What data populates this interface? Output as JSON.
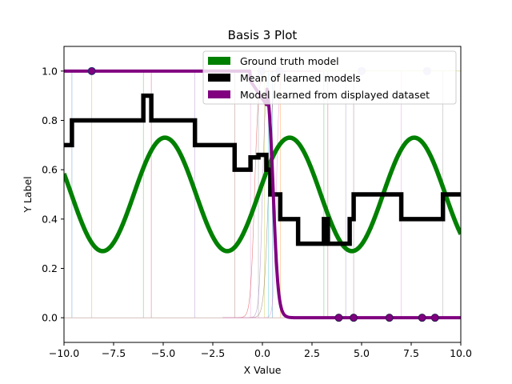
{
  "chart_data": {
    "type": "line",
    "title": "Basis 3 Plot",
    "xlabel": "X Value",
    "ylabel": "Y Label",
    "xlim": [
      -10,
      10
    ],
    "ylim": [
      -0.1,
      1.1
    ],
    "x_ticks": [
      -10,
      -7.5,
      -5,
      -2.5,
      0,
      2.5,
      5,
      7.5,
      10
    ],
    "x_tick_labels": [
      "−10.0",
      "−7.5",
      "−5.0",
      "−2.5",
      "0.0",
      "2.5",
      "5.0",
      "7.5",
      "10.0"
    ],
    "y_ticks": [
      0.0,
      0.2,
      0.4,
      0.6,
      0.8,
      1.0
    ],
    "y_tick_labels": [
      "0.0",
      "0.2",
      "0.4",
      "0.6",
      "0.8",
      "1.0"
    ],
    "grid": false,
    "legend_position": "upper right",
    "legend": [
      {
        "label": "Ground truth model",
        "color": "#008000"
      },
      {
        "label": "Mean of learned models",
        "color": "#000000"
      },
      {
        "label": "Model learned from displayed dataset",
        "color": "#800080"
      }
    ],
    "ground_truth": {
      "form": "0.5 + 0.23*sin(1.0*x + 0.2)",
      "color": "#008000"
    },
    "mean_model": {
      "color": "#000000",
      "steps": [
        [
          -10,
          0.7
        ],
        [
          -9.6,
          0.8
        ],
        [
          -6.0,
          0.9
        ],
        [
          -5.6,
          0.8
        ],
        [
          -3.4,
          0.7
        ],
        [
          -1.4,
          0.6
        ],
        [
          -0.6,
          0.65
        ],
        [
          -0.2,
          0.66
        ],
        [
          0.2,
          0.6
        ],
        [
          0.4,
          0.5
        ],
        [
          0.9,
          0.4
        ],
        [
          1.8,
          0.3
        ],
        [
          3.1,
          0.4
        ],
        [
          3.3,
          0.3
        ],
        [
          4.4,
          0.4
        ],
        [
          4.6,
          0.5
        ],
        [
          7.0,
          0.4
        ],
        [
          9.1,
          0.5
        ],
        [
          10,
          0.5
        ]
      ]
    },
    "displayed_model": {
      "color": "#800080",
      "form": "1 - sigmoid((x - 0.55) * 8)"
    },
    "points_y1": [
      -8.6,
      -0.05,
      0.85,
      5.0,
      8.3
    ],
    "points_y0": [
      3.85,
      4.6,
      6.4,
      8.05,
      8.7
    ]
  }
}
